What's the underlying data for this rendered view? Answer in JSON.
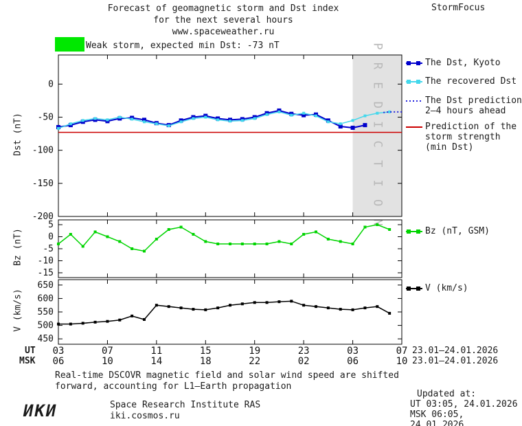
{
  "header": {
    "title_line1": "Forecast of geomagnetic storm and Dst index",
    "title_line2": "for the next several hours",
    "title_line3": "www.spaceweather.ru",
    "brand": "StormFocus"
  },
  "storm_banner": {
    "text": "Weak storm, expected min Dst: -73 nT",
    "swatch_color": "#00e800"
  },
  "legend": {
    "items": [
      {
        "key": "dst-kyoto",
        "lines": [
          "The Dst, Kyoto"
        ],
        "color": "#0000cc",
        "style": "squares"
      },
      {
        "key": "recovered-dst",
        "lines": [
          "The recovered Dst"
        ],
        "color": "#44d8ec",
        "style": "squares"
      },
      {
        "key": "dst-prediction",
        "lines": [
          "The Dst prediction",
          "2–4 hours ahead"
        ],
        "color": "#2222dd",
        "style": "dotted"
      },
      {
        "key": "storm-strength",
        "lines": [
          "Prediction of the",
          "storm strength",
          "(min Dst)"
        ],
        "color": "#cc0000",
        "style": "line"
      },
      {
        "key": "bz",
        "lines": [
          "Bz (nT, GSM)"
        ],
        "color": "#00d400",
        "style": "squares"
      },
      {
        "key": "v",
        "lines": [
          "V (km/s)"
        ],
        "color": "#000000",
        "style": "squares"
      }
    ]
  },
  "xaxis": {
    "ut_label": "UT",
    "msk_label": "MSK",
    "ut_ticks": [
      "03",
      "07",
      "11",
      "15",
      "19",
      "23",
      "03",
      "07"
    ],
    "msk_ticks": [
      "06",
      "10",
      "14",
      "18",
      "22",
      "02",
      "06",
      "10"
    ],
    "ut_date": "23.01–24.01.2026",
    "msk_date": "23.01–24.01.2026"
  },
  "footer": {
    "note_line1": "Real-time DSCOVR magnetic field and solar wind speed are shifted",
    "note_line2": "forward, accounting for L1–Earth propagation",
    "updated_label": "Updated at:",
    "updated_ut": "UT  03:05, 24.01.2026",
    "updated_msk": "MSK 06:05, 24.01.2026",
    "logo": "ИКИ",
    "institute": "Space Research Institute RAS",
    "website": "iki.cosmos.ru"
  },
  "prediction_region_label": "P R E D I C T I O N",
  "chart_data": [
    {
      "type": "line",
      "name": "dst-panel",
      "ylabel": "Dst (nT)",
      "xlim": [
        3,
        31
      ],
      "ylim": [
        -200,
        44
      ],
      "yticks": [
        0,
        -50,
        -100,
        -150,
        -200
      ],
      "xticks": [
        3,
        7,
        11,
        15,
        19,
        23,
        27,
        31
      ],
      "prediction_region": [
        27,
        31
      ],
      "hline": {
        "value": -73,
        "color": "#cc0000"
      },
      "series": [
        {
          "name": "The Dst, Kyoto",
          "color": "#0000cc",
          "marker": "square",
          "marker_size": 6,
          "width": 2,
          "x": [
            3,
            4,
            5,
            6,
            7,
            8,
            9,
            10,
            11,
            12,
            13,
            14,
            15,
            16,
            17,
            18,
            19,
            20,
            21,
            22,
            23,
            24,
            25,
            26,
            27,
            28
          ],
          "y": [
            -65,
            -62,
            -57,
            -54,
            -56,
            -52,
            -51,
            -54,
            -59,
            -62,
            -55,
            -50,
            -48,
            -52,
            -54,
            -53,
            -50,
            -44,
            -40,
            -45,
            -47,
            -46,
            -55,
            -64,
            -66,
            -62
          ]
        },
        {
          "name": "The recovered Dst",
          "color": "#44d8ec",
          "marker": "square",
          "marker_size": 4,
          "width": 1.5,
          "x": [
            3,
            4,
            5,
            6,
            7,
            8,
            9,
            10,
            11,
            12,
            13,
            14,
            15,
            16,
            17,
            18,
            19,
            20,
            21,
            22,
            23,
            24,
            25,
            26,
            27,
            28,
            29,
            30
          ],
          "y": [
            -67,
            -60,
            -55,
            -52,
            -54,
            -50,
            -53,
            -57,
            -60,
            -63,
            -57,
            -52,
            -50,
            -54,
            -56,
            -55,
            -52,
            -46,
            -42,
            -47,
            -44,
            -48,
            -57,
            -60,
            -55,
            -48,
            -44,
            -42
          ]
        },
        {
          "name": "The Dst prediction",
          "color": "#2222dd",
          "dash": true,
          "width": 2,
          "x": [
            29.5,
            30,
            30.5,
            31
          ],
          "y": [
            -43,
            -42,
            -42,
            -42
          ]
        }
      ]
    },
    {
      "type": "line",
      "name": "bz-panel",
      "ylabel": "Bz (nT)",
      "xlim": [
        3,
        31
      ],
      "ylim": [
        -17,
        7
      ],
      "yticks": [
        5,
        0,
        -5,
        -10,
        -15
      ],
      "xticks": [
        3,
        7,
        11,
        15,
        19,
        23,
        27,
        31
      ],
      "series": [
        {
          "name": "Bz (nT, GSM)",
          "color": "#00d400",
          "marker": "square",
          "marker_size": 4,
          "width": 1.5,
          "x": [
            3,
            4,
            5,
            6,
            7,
            8,
            9,
            10,
            11,
            12,
            13,
            14,
            15,
            16,
            17,
            18,
            19,
            20,
            21,
            22,
            23,
            24,
            25,
            26,
            27,
            28,
            29,
            30
          ],
          "y": [
            -3,
            1,
            -4,
            2,
            0,
            -2,
            -5,
            -6,
            -1,
            3,
            4,
            1,
            -2,
            -3,
            -3,
            -3,
            -3,
            -3,
            -2,
            -3,
            1,
            2,
            -1,
            -2,
            -3,
            4,
            5,
            3
          ]
        }
      ]
    },
    {
      "type": "line",
      "name": "v-panel",
      "ylabel": "V (km/s)",
      "xlim": [
        3,
        31
      ],
      "ylim": [
        430,
        670
      ],
      "yticks": [
        650,
        600,
        550,
        500,
        450
      ],
      "xticks": [
        3,
        7,
        11,
        15,
        19,
        23,
        27,
        31
      ],
      "series": [
        {
          "name": "V (km/s)",
          "color": "#000000",
          "marker": "square",
          "marker_size": 4,
          "width": 1.5,
          "x": [
            3,
            4,
            5,
            6,
            7,
            8,
            9,
            10,
            11,
            12,
            13,
            14,
            15,
            16,
            17,
            18,
            19,
            20,
            21,
            22,
            23,
            24,
            25,
            26,
            27,
            28,
            29,
            30
          ],
          "y": [
            505,
            505,
            508,
            512,
            515,
            520,
            535,
            522,
            575,
            570,
            565,
            560,
            558,
            565,
            575,
            580,
            585,
            585,
            588,
            590,
            575,
            570,
            565,
            560,
            558,
            565,
            570,
            545
          ]
        }
      ]
    }
  ]
}
